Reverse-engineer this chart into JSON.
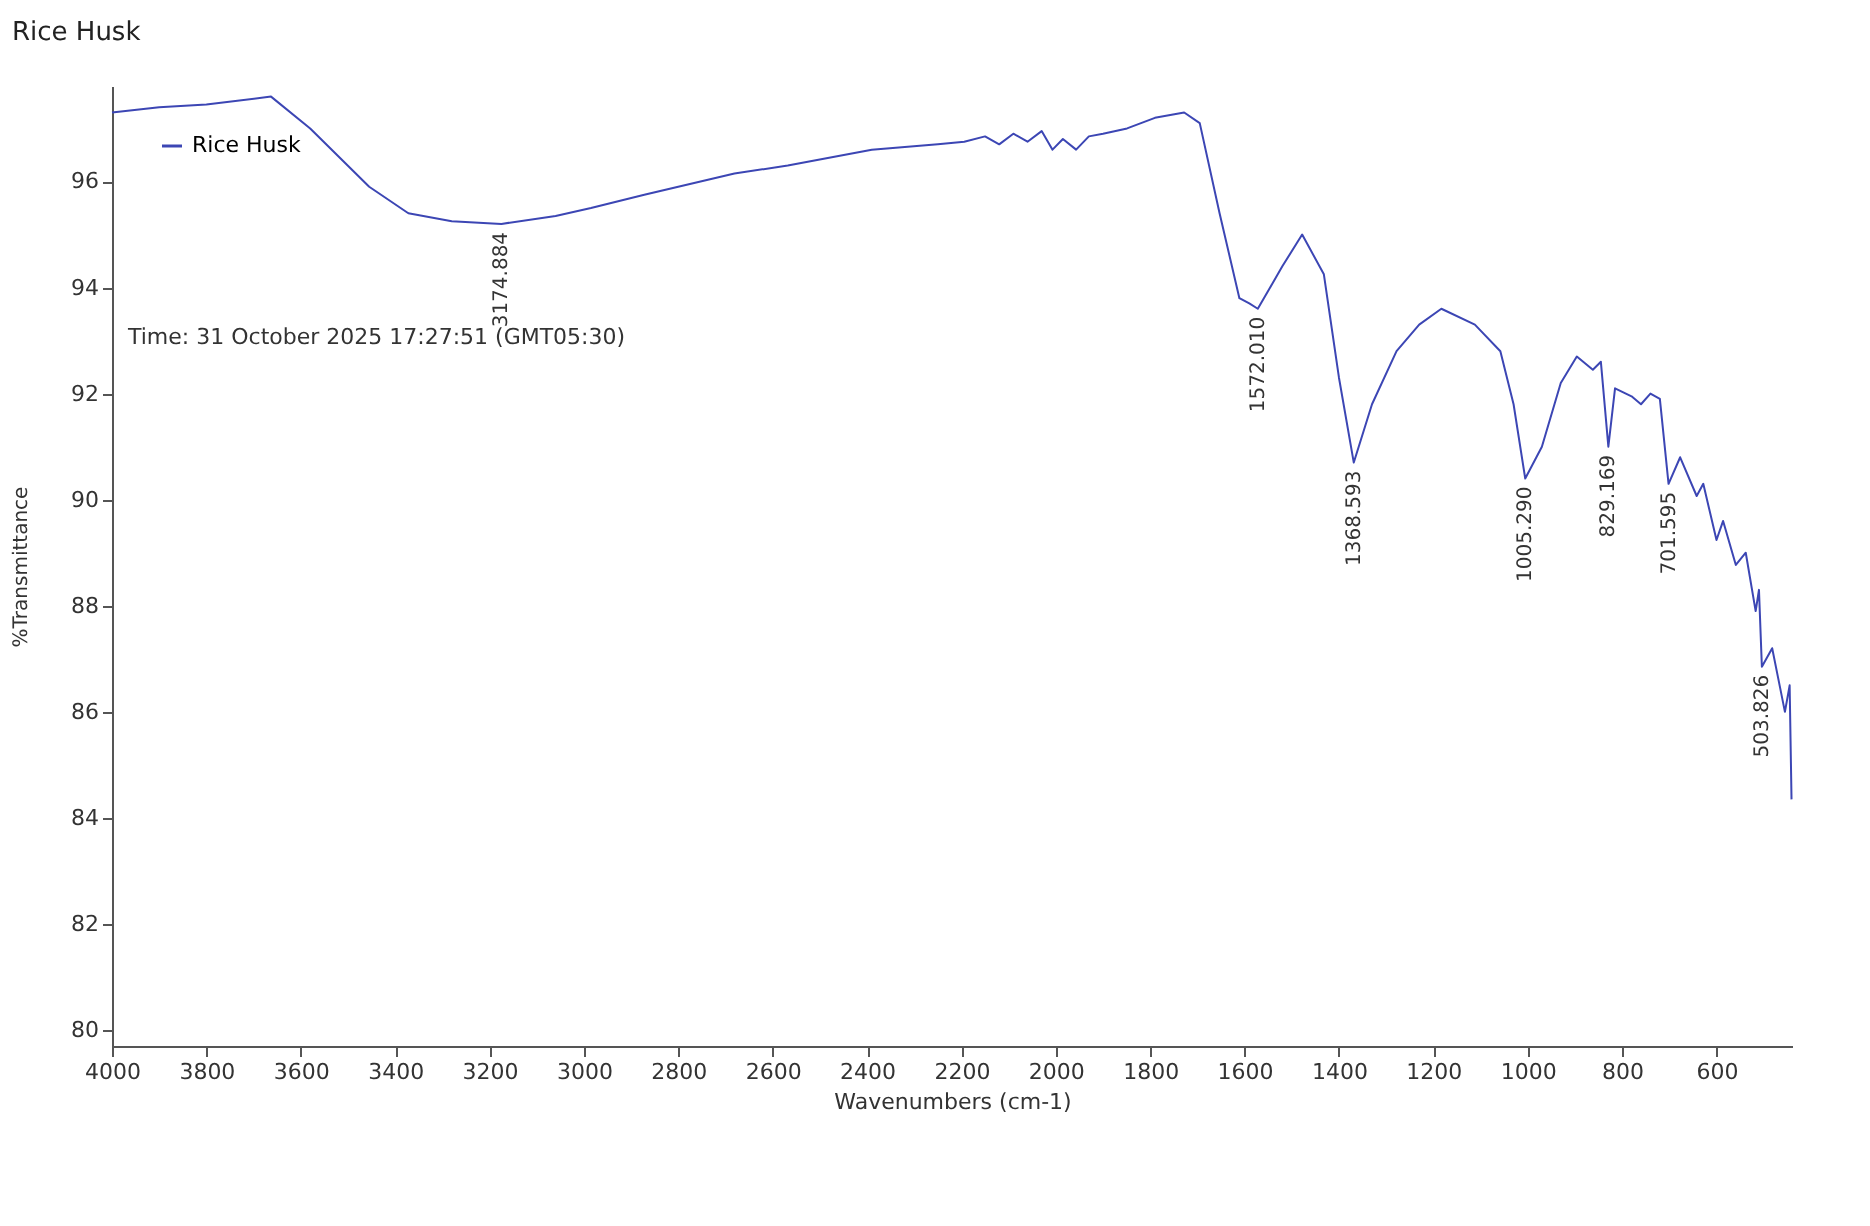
{
  "chart_data": {
    "type": "line",
    "title": "Rice Husk",
    "xlabel": "Wavenumbers (cm-1)",
    "ylabel": "%Transmittance",
    "xlim": [
      4000,
      440
    ],
    "ylim": [
      79.7,
      97.8
    ],
    "xticks": [
      4000,
      3800,
      3600,
      3400,
      3200,
      3000,
      2800,
      2600,
      2400,
      2200,
      2000,
      1800,
      1600,
      1400,
      1200,
      1000,
      800,
      600
    ],
    "yticks": [
      80,
      82,
      84,
      86,
      88,
      90,
      92,
      94,
      96
    ],
    "grid": false,
    "legend": "top left",
    "line_style": "solid",
    "marker": "none",
    "series": [
      {
        "name": "Rice Husk",
        "color": "#3c46b4",
        "x": [
          4000,
          3900,
          3800,
          3663,
          3580,
          3455,
          3372,
          3280,
          3174.884,
          3060,
          2985,
          2872,
          2681,
          2568,
          2390,
          2250,
          2194,
          2150,
          2120,
          2090,
          2060,
          2030,
          2007,
          1985,
          1957,
          1930,
          1900,
          1849,
          1790,
          1728,
          1695,
          1653,
          1611,
          1590,
          1572.01,
          1520,
          1478,
          1432,
          1400,
          1368.593,
          1330,
          1278,
          1230,
          1183,
          1112,
          1058,
          1030,
          1005.29,
          970,
          930,
          896,
          862,
          845,
          829.169,
          815,
          780,
          760,
          740,
          720,
          701.595,
          677,
          642,
          628,
          600,
          586,
          559,
          538,
          517,
          510,
          503.826,
          482,
          455,
          445,
          441
        ],
        "values": [
          97.3,
          97.4,
          97.45,
          97.6,
          97.0,
          95.9,
          95.4,
          95.25,
          95.2,
          95.35,
          95.5,
          95.75,
          96.15,
          96.3,
          96.6,
          96.7,
          96.75,
          96.85,
          96.7,
          96.9,
          96.75,
          96.95,
          96.6,
          96.8,
          96.6,
          96.85,
          96.9,
          97.0,
          97.2,
          97.3,
          97.1,
          95.4,
          93.8,
          93.7,
          93.6,
          94.4,
          95.0,
          94.25,
          92.3,
          90.7,
          91.8,
          92.8,
          93.3,
          93.6,
          93.3,
          92.8,
          91.8,
          90.4,
          91.0,
          92.2,
          92.7,
          92.45,
          92.6,
          91.0,
          92.1,
          91.95,
          91.8,
          92.0,
          91.9,
          90.3,
          90.8,
          90.07,
          90.3,
          89.24,
          89.6,
          88.77,
          89.0,
          87.9,
          88.3,
          86.85,
          87.2,
          86.0,
          86.5,
          84.35
        ]
      }
    ],
    "annotations": [
      "Time: 31 October 2025 17:27:51 (GMT05:30)",
      {
        "text": "3174.884",
        "x": 3174.884,
        "y": 95.2
      },
      {
        "text": "1572.010",
        "x": 1572.01,
        "y": 93.6
      },
      {
        "text": "1368.593",
        "x": 1368.593,
        "y": 90.7
      },
      {
        "text": "1005.290",
        "x": 1005.29,
        "y": 90.4
      },
      {
        "text": "829.169",
        "x": 829.169,
        "y": 91.0
      },
      {
        "text": "701.595",
        "x": 701.595,
        "y": 90.3
      },
      {
        "text": "503.826",
        "x": 503.826,
        "y": 86.85
      }
    ]
  }
}
